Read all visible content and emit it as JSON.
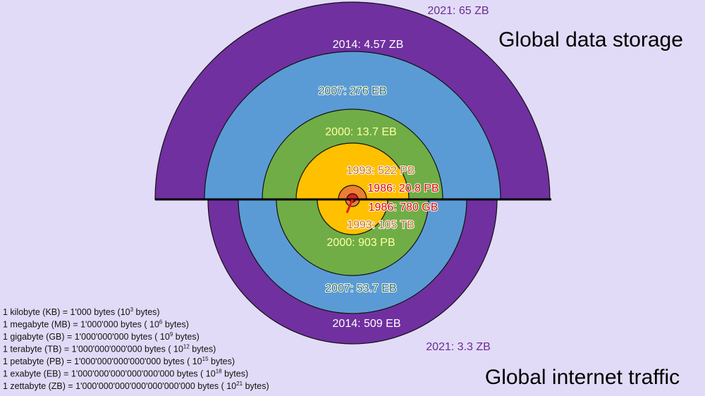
{
  "storage": {
    "title": "Global data storage",
    "labels": [
      "2021: 65 ZB",
      "2014: 4.57 ZB",
      "2007: 276 EB",
      "2000: 13.7 EB",
      "1993: 522 PB",
      "1986: 20.8 PB"
    ]
  },
  "traffic": {
    "title": "Global internet traffic",
    "labels": [
      "2021: 3.3 ZB",
      "2014: 509 EB",
      "2007: 53.7 EB",
      "2000: 903 PB",
      "1993: 105 TB",
      "1986: 780 GB"
    ]
  },
  "units": [
    {
      "definition": "1 kilobyte (KB) = 1'000 bytes (10",
      "exponent": "3",
      "suffix": " bytes)"
    },
    {
      "definition": "1 megabyte (MB) = 1'000'000 bytes ( 10",
      "exponent": "6",
      "suffix": " bytes)"
    },
    {
      "definition": "1 gigabyte (GB) = 1'000'000'000 bytes ( 10",
      "exponent": "9",
      "suffix": " bytes)"
    },
    {
      "definition": "1 terabyte (TB) = 1'000'000'000'000 bytes ( 10",
      "exponent": "12",
      "suffix": " bytes)"
    },
    {
      "definition": "1 petabyte (PB) = 1'000'000'000'000'000 bytes ( 10",
      "exponent": "15",
      "suffix": " bytes)"
    },
    {
      "definition": "1 exabyte (EB) = 1'000'000'000'000'000'000 bytes ( 10",
      "exponent": "18",
      "suffix": " bytes)"
    },
    {
      "definition": "1 zettabyte (ZB) = 1'000'000'000'000'000'000'000 bytes ( 10",
      "exponent": "21",
      "suffix": " bytes)"
    }
  ]
}
